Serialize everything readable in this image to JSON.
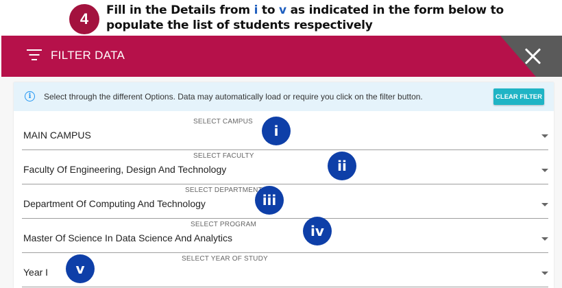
{
  "instruction": {
    "step": "4",
    "line1_a": "Fill in the Details from ",
    "line1_i": "i",
    "line1_b": " to ",
    "line1_v": "v",
    "line1_c": " as indicated in the form below to",
    "line2": "populate the list of students respectively"
  },
  "panel": {
    "title": "FILTER DATA",
    "info_text": "Select through the different Options. Data may automatically load or require you click on the filter button.",
    "clear_filter_label": "CLEAR FILTER"
  },
  "fields": [
    {
      "label": "SELECT CAMPUS",
      "value": "MAIN CAMPUS",
      "marker": "i"
    },
    {
      "label": "SELECT FACULTY",
      "value": "Faculty Of Engineering, Design And Technology",
      "marker": "ii"
    },
    {
      "label": "SELECT DEPARTMENT",
      "value": "Department Of Computing And Technology",
      "marker": "iii"
    },
    {
      "label": "SELECT PROGRAM",
      "value": "Master Of Science In Data Science And Analytics",
      "marker": "iv"
    },
    {
      "label": "SELECT YEAR OF STUDY",
      "value": "Year I",
      "marker": "v"
    }
  ],
  "colors": {
    "brand": "#b6114a",
    "marker": "#0e3fa8",
    "accent_button": "#1fb4c5",
    "info_background": "#e5f3fb"
  },
  "icons": {
    "filter": "filter-icon",
    "close": "close-icon",
    "info": "info-icon",
    "dropdown": "chevron-down-icon"
  }
}
